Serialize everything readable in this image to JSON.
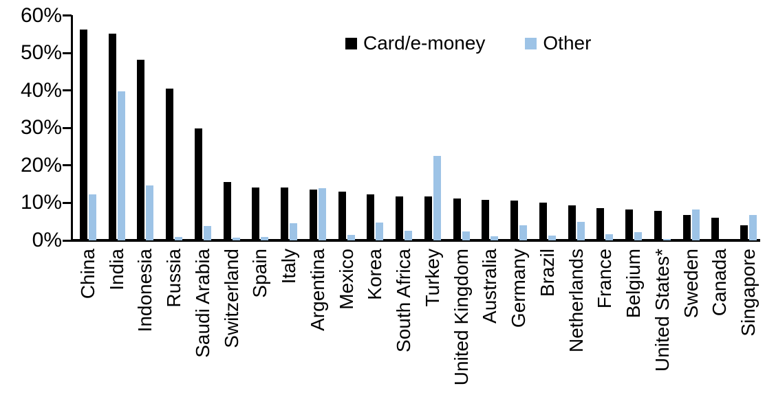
{
  "chart_data": {
    "type": "bar",
    "title": "",
    "xlabel": "",
    "ylabel": "",
    "ylim": [
      0,
      60
    ],
    "ytick_labels": [
      "0%",
      "10%",
      "20%",
      "30%",
      "40%",
      "50%",
      "60%"
    ],
    "grid": false,
    "legend_position": "top-center",
    "categories": [
      "China",
      "India",
      "Indonesia",
      "Russia",
      "Saudi Arabia",
      "Switzerland",
      "Spain",
      "Italy",
      "Argentina",
      "Mexico",
      "Korea",
      "South Africa",
      "Turkey",
      "United Kingdom",
      "Australia",
      "Germany",
      "Brazil",
      "Netherlands",
      "France",
      "Belgium",
      "United States*",
      "Sweden",
      "Canada",
      "Singapore"
    ],
    "series": [
      {
        "name": "Card/e-money",
        "color": "#000000",
        "values": [
          56.3,
          55.2,
          48.3,
          40.6,
          29.9,
          15.6,
          14.2,
          14.1,
          13.6,
          13.0,
          12.3,
          11.8,
          11.8,
          11.1,
          10.9,
          10.7,
          10.0,
          9.4,
          8.7,
          8.3,
          7.9,
          6.7,
          6.1,
          4.1
        ]
      },
      {
        "name": "Other",
        "color": "#9DC3E6",
        "values": [
          12.3,
          39.8,
          14.6,
          1.0,
          3.9,
          0.8,
          1.0,
          4.6,
          14.0,
          1.5,
          4.7,
          2.5,
          22.6,
          2.4,
          1.1,
          4.1,
          1.2,
          4.9,
          1.6,
          2.2,
          0.3,
          8.2,
          0,
          6.8
        ]
      }
    ]
  }
}
